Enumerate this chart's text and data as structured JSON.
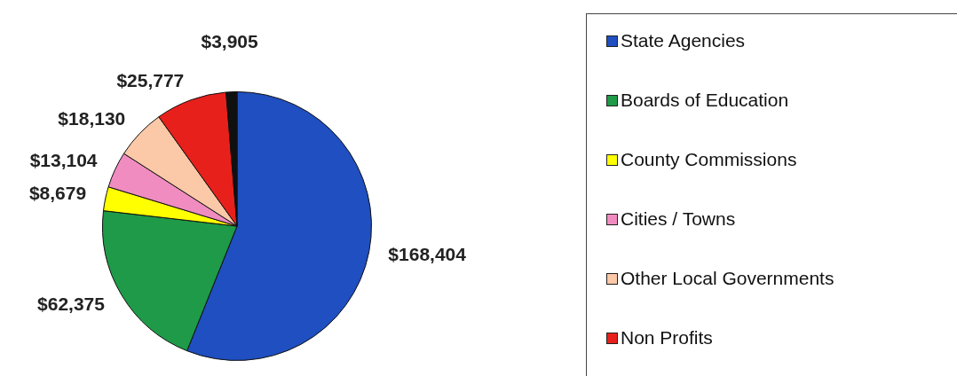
{
  "chart_data": {
    "type": "pie",
    "categories": [
      "State Agencies",
      "Boards of Education",
      "County Commissions",
      "Cities / Towns",
      "Other Local Governments",
      "Non Profits",
      null
    ],
    "values": [
      168404,
      62375,
      8679,
      13104,
      18130,
      25777,
      3905
    ],
    "value_labels": [
      "$168,404",
      "$62,375",
      "$8,679",
      "$13,104",
      "$18,130",
      "$25,777",
      "$3,905"
    ],
    "colors": [
      "#1f4fc0",
      "#1e9a48",
      "#ffff00",
      "#f08cc0",
      "#fbc8a8",
      "#e8201c",
      "#101010"
    ],
    "legend": "right"
  }
}
